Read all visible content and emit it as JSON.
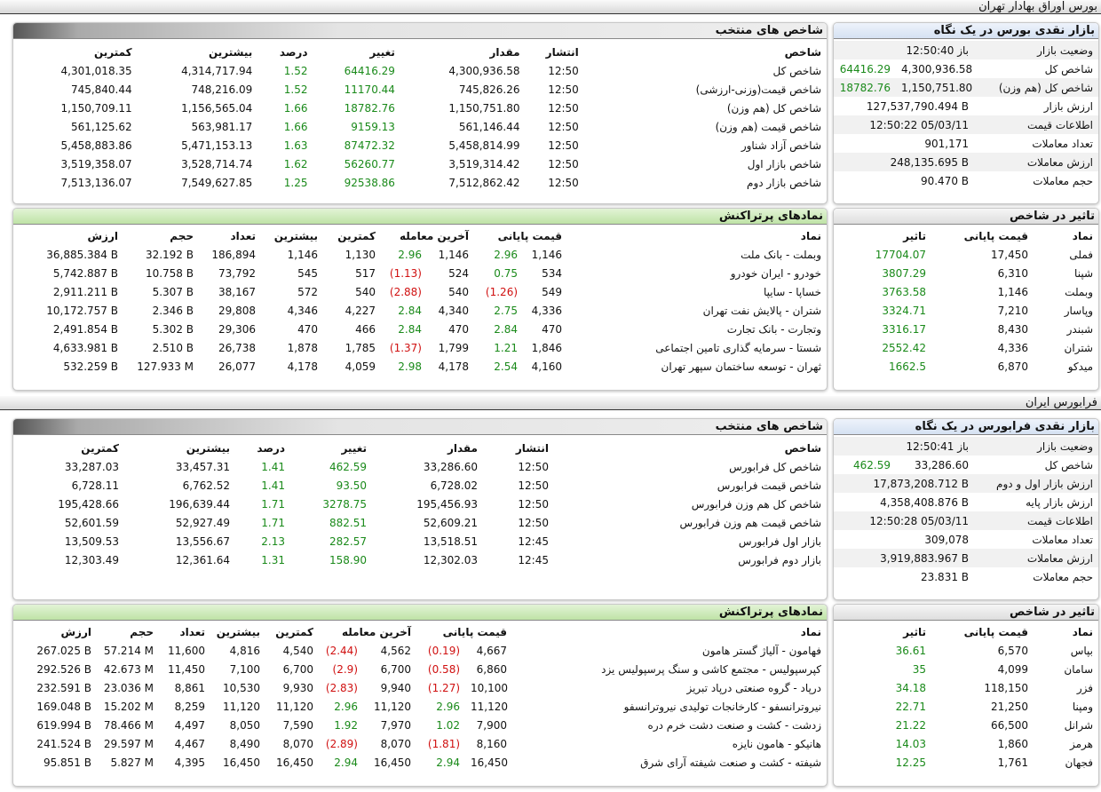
{
  "sections": [
    {
      "title": "بورس اوراق بهادار تهران",
      "indices": {
        "title": "شاخص های منتخب",
        "columns": [
          "شاخص",
          "انتشار",
          "مقدار",
          "تغییر",
          "درصد",
          "بیشترین",
          "کمترین"
        ],
        "rows": [
          [
            "شاخص کل",
            "12:50",
            "4,300,936.58",
            "64416.29",
            "1.52",
            "4,314,717.94",
            "4,301,018.35"
          ],
          [
            "شاخص قیمت(وزنی-ارزشی)",
            "12:50",
            "745,826.26",
            "11170.44",
            "1.52",
            "748,216.09",
            "745,840.44"
          ],
          [
            "شاخص کل (هم وزن)",
            "12:50",
            "1,150,751.80",
            "18782.76",
            "1.66",
            "1,156,565.04",
            "1,150,709.11"
          ],
          [
            "شاخص قیمت (هم وزن)",
            "12:50",
            "561,146.44",
            "9159.13",
            "1.66",
            "563,981.17",
            "561,125.62"
          ],
          [
            "شاخص آزاد شناور",
            "12:50",
            "5,458,814.99",
            "87472.32",
            "1.63",
            "5,471,153.13",
            "5,458,883.86"
          ],
          [
            "شاخص بازار اول",
            "12:50",
            "3,519,314.42",
            "56260.77",
            "1.62",
            "3,528,714.74",
            "3,519,358.07"
          ],
          [
            "شاخص بازار دوم",
            "12:50",
            "7,512,862.42",
            "92538.86",
            "1.25",
            "7,549,627.85",
            "7,513,136.07"
          ]
        ]
      },
      "glance": {
        "title": "بازار نقدی بورس در یک نگاه",
        "rows": [
          [
            "وضعیت بازار",
            "باز 12:50:40"
          ],
          [
            "شاخص کل",
            "4,300,936.58",
            "64416.29"
          ],
          [
            "شاخص کل (هم وزن)",
            "1,150,751.80",
            "18782.76"
          ],
          [
            "ارزش بازار",
            "127,537,790.494 B"
          ],
          [
            "اطلاعات قیمت",
            "12:50:22 05/03/11"
          ],
          [
            "تعداد معاملات",
            "901,171"
          ],
          [
            "ارزش معاملات",
            "248,135.695 B"
          ],
          [
            "حجم معاملات",
            "90.470 B"
          ]
        ]
      },
      "traded": {
        "title": "نمادهای پرتراکنش",
        "columns": [
          "نماد",
          "قیمت پایانی",
          "آخرین معامله",
          "کمترین",
          "بیشترین",
          "تعداد",
          "حجم",
          "ارزش"
        ],
        "rows": [
          [
            "وبملت - بانک ملت",
            "1,146",
            "2.96",
            "1,146",
            "2.96",
            "1,130",
            "1,146",
            "186,894",
            "32.192 B",
            "36,885.384 B"
          ],
          [
            "خودرو - ایران خودرو",
            "534",
            "0.75",
            "524",
            "(1.13)",
            "517",
            "545",
            "73,792",
            "10.758 B",
            "5,742.887 B"
          ],
          [
            "خساپا - سایپا",
            "549",
            "(1.26)",
            "540",
            "(2.88)",
            "540",
            "572",
            "38,167",
            "5.307 B",
            "2,911.211 B"
          ],
          [
            "شتران - پالایش نفت تهران",
            "4,336",
            "2.75",
            "4,340",
            "2.84",
            "4,227",
            "4,346",
            "29,808",
            "2.346 B",
            "10,172.757 B"
          ],
          [
            "وتجارت - بانک تجارت",
            "470",
            "2.84",
            "470",
            "2.84",
            "466",
            "470",
            "29,306",
            "5.302 B",
            "2,491.854 B"
          ],
          [
            "شستا - سرمایه گذاری تامین اجتماعی",
            "1,846",
            "1.21",
            "1,799",
            "(1.37)",
            "1,785",
            "1,878",
            "26,738",
            "2.510 B",
            "4,633.981 B"
          ],
          [
            "ثهران - توسعه ساختمان سپهر تهران",
            "4,160",
            "2.54",
            "4,178",
            "2.98",
            "4,059",
            "4,178",
            "26,077",
            "127.933 M",
            "532.259 B"
          ]
        ]
      },
      "impact": {
        "title": "تاثیر در شاخص",
        "columns": [
          "نماد",
          "قیمت پایانی",
          "تاثیر"
        ],
        "rows": [
          [
            "فملی",
            "17,450",
            "17704.07"
          ],
          [
            "شپنا",
            "6,310",
            "3807.29"
          ],
          [
            "وبملت",
            "1,146",
            "3763.58"
          ],
          [
            "وپاسار",
            "7,210",
            "3324.71"
          ],
          [
            "شبندر",
            "8,430",
            "3316.17"
          ],
          [
            "شتران",
            "4,336",
            "2552.42"
          ],
          [
            "میدکو",
            "6,870",
            "1662.5"
          ]
        ]
      }
    },
    {
      "title": "فرابورس ایران",
      "indices": {
        "title": "شاخص های منتخب",
        "columns": [
          "شاخص",
          "انتشار",
          "مقدار",
          "تغییر",
          "درصد",
          "بیشترین",
          "کمترین"
        ],
        "rows": [
          [
            "شاخص کل فرابورس",
            "12:50",
            "33,286.60",
            "462.59",
            "1.41",
            "33,457.31",
            "33,287.03"
          ],
          [
            "شاخص قیمت فرابورس",
            "12:50",
            "6,728.02",
            "93.50",
            "1.41",
            "6,762.52",
            "6,728.11"
          ],
          [
            "شاخص کل هم وزن فرابورس",
            "12:50",
            "195,456.93",
            "3278.75",
            "1.71",
            "196,639.44",
            "195,428.66"
          ],
          [
            "شاخص قیمت هم وزن فرابورس",
            "12:50",
            "52,609.21",
            "882.51",
            "1.71",
            "52,927.49",
            "52,601.59"
          ],
          [
            "بازار اول فرابورس",
            "12:45",
            "13,518.51",
            "282.57",
            "2.13",
            "13,556.67",
            "13,509.53"
          ],
          [
            "بازار دوم فرابورس",
            "12:45",
            "12,302.03",
            "158.90",
            "1.31",
            "12,361.64",
            "12,303.49"
          ]
        ]
      },
      "glance": {
        "title": "بازار نقدی فرابورس در یک نگاه",
        "rows": [
          [
            "وضعیت بازار",
            "باز 12:50:41"
          ],
          [
            "شاخص کل",
            "33,286.60",
            "462.59"
          ],
          [
            "ارزش بازار اول و دوم",
            "17,873,208.712 B"
          ],
          [
            "ارزش بازار پایه",
            "4,358,408.876 B"
          ],
          [
            "اطلاعات قیمت",
            "12:50:28 05/03/11"
          ],
          [
            "تعداد معاملات",
            "309,078"
          ],
          [
            "ارزش معاملات",
            "3,919,883.967 B"
          ],
          [
            "حجم معاملات",
            "23.831 B"
          ]
        ]
      },
      "traded": {
        "title": "نمادهای پرتراکنش",
        "columns": [
          "نماد",
          "قیمت پایانی",
          "آخرین معامله",
          "کمترین",
          "بیشترین",
          "تعداد",
          "حجم",
          "ارزش"
        ],
        "rows": [
          [
            "فهامون - آلیاژ گستر هامون",
            "4,667",
            "(0.19)",
            "4,562",
            "(2.44)",
            "4,540",
            "4,816",
            "11,600",
            "57.214 M",
            "267.025 B"
          ],
          [
            "کپرسپولیس - مجتمع کاشی و سنگ پرسپولیس یزد",
            "6,860",
            "(0.58)",
            "6,700",
            "(2.9)",
            "6,700",
            "7,100",
            "11,450",
            "42.673 M",
            "292.526 B"
          ],
          [
            "درپاد - گروه صنعتی درپاد تبریز",
            "10,100",
            "(1.27)",
            "9,940",
            "(2.83)",
            "9,930",
            "10,530",
            "8,861",
            "23.036 M",
            "232.591 B"
          ],
          [
            "نیروترانسفو - کارخانجات تولیدی نیروترانسفو",
            "11,120",
            "2.96",
            "11,120",
            "2.96",
            "11,120",
            "11,120",
            "8,259",
            "15.202 M",
            "169.048 B"
          ],
          [
            "زدشت - کشت و صنعت دشت خرم دره",
            "7,900",
            "1.02",
            "7,970",
            "1.92",
            "7,590",
            "8,050",
            "4,497",
            "78.466 M",
            "619.994 B"
          ],
          [
            "هانیکو - هامون نایزه",
            "8,160",
            "(1.81)",
            "8,070",
            "(2.89)",
            "8,070",
            "8,490",
            "4,467",
            "29.597 M",
            "241.524 B"
          ],
          [
            "شیفته - کشت و صنعت شیفته آرای شرق",
            "16,450",
            "2.94",
            "16,450",
            "2.94",
            "16,450",
            "16,450",
            "4,395",
            "5.827 M",
            "95.851 B"
          ]
        ]
      },
      "impact": {
        "title": "تاثیر در شاخص",
        "columns": [
          "نماد",
          "قیمت پایانی",
          "تاثیر"
        ],
        "rows": [
          [
            "بپاس",
            "6,570",
            "36.61"
          ],
          [
            "سامان",
            "4,099",
            "35"
          ],
          [
            "فزر",
            "118,150",
            "34.18"
          ],
          [
            "ومپنا",
            "21,250",
            "22.71"
          ],
          [
            "شرانل",
            "66,500",
            "21.22"
          ],
          [
            "هرمز",
            "1,860",
            "14.03"
          ],
          [
            "فجهان",
            "1,761",
            "12.25"
          ]
        ]
      }
    }
  ]
}
